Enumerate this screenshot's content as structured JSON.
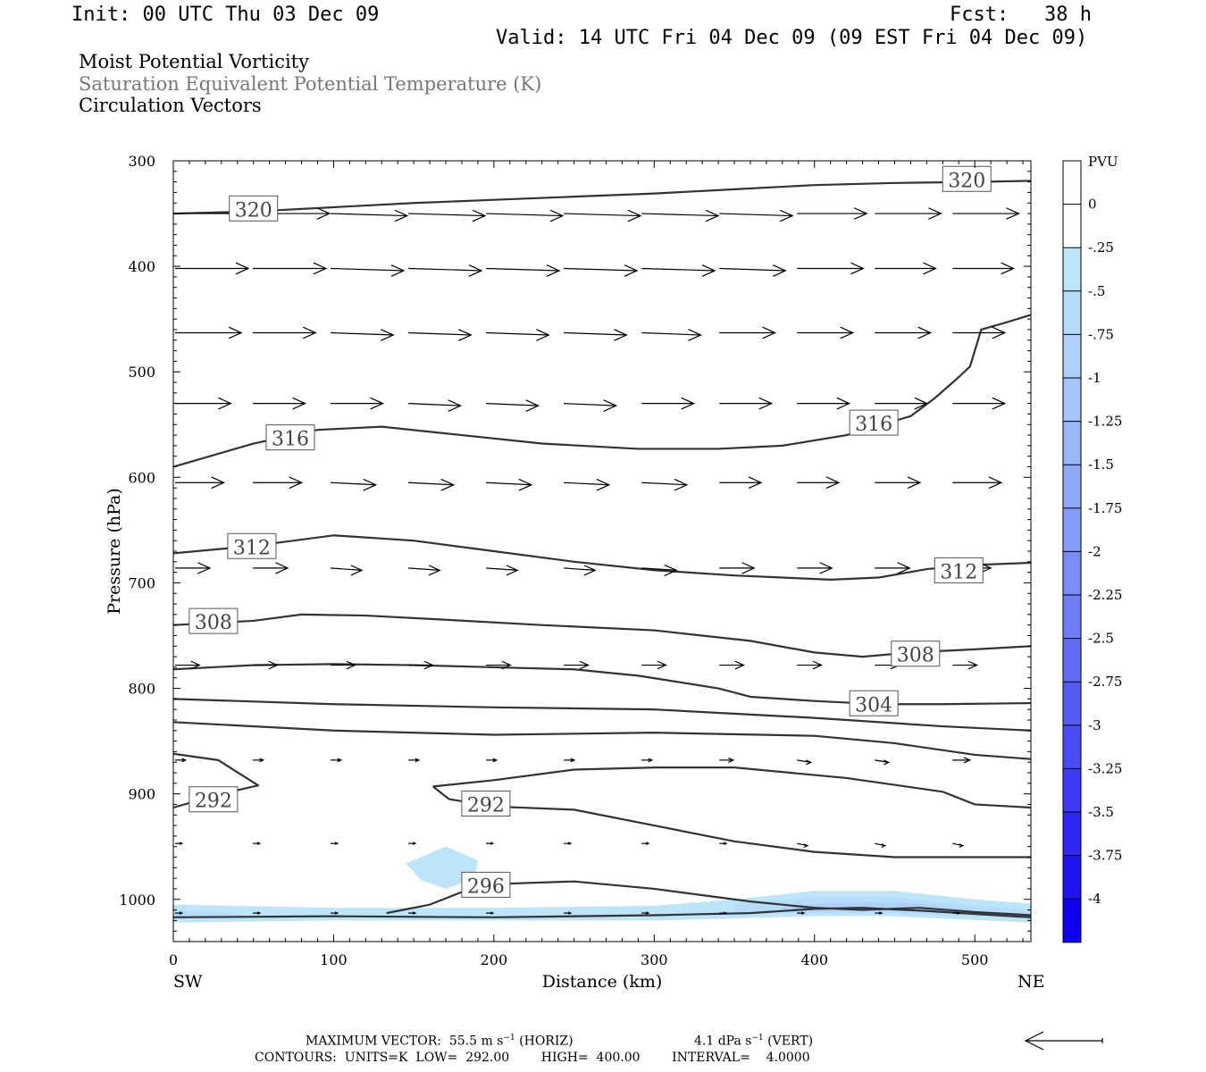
{
  "header": {
    "init": "Init: 00 UTC Thu 03 Dec 09",
    "fcst": "Fcst:   38 h",
    "valid": "Valid: 14 UTC Fri 04 Dec 09 (09 EST Fri 04 Dec 09)"
  },
  "titles": {
    "line1": "Moist Potential Vorticity",
    "line2": "Saturation Equivalent Potential Temperature (K)",
    "line3": "Circulation Vectors"
  },
  "chart_data": {
    "type": "cross-section",
    "xlabel": "Distance (km)",
    "ylabel": "Pressure (hPa)",
    "xlim": [
      0,
      535
    ],
    "ylim": [
      1040,
      300
    ],
    "x_ticks": [
      0,
      100,
      200,
      300,
      400,
      500
    ],
    "y_ticks": [
      300,
      400,
      500,
      600,
      700,
      800,
      900,
      1000
    ],
    "x_end_labels": {
      "left": "SW",
      "right": "NE"
    },
    "colorbar": {
      "title": "PVU",
      "labels": [
        "0",
        "-.25",
        "-.5",
        "-.75",
        "-1",
        "-1.25",
        "-1.5",
        "-1.75",
        "-2",
        "-2.25",
        "-2.5",
        "-2.75",
        "-3",
        "-3.25",
        "-3.5",
        "-3.75",
        "-4"
      ],
      "colors": [
        "#ffffff",
        "#ffffff",
        "#bde5fa",
        "#b5dcfb",
        "#aed1fa",
        "#a4c4fa",
        "#9ab7fa",
        "#8fa9f9",
        "#859bf9",
        "#7a8cf8",
        "#6e7cf8",
        "#626cf7",
        "#565bf7",
        "#4a4bf6",
        "#3d39f6",
        "#2f27f5",
        "#1f13f4",
        "#0f00f2"
      ]
    },
    "contours": [
      {
        "label": "320",
        "points": [
          [
            0,
            350
          ],
          [
            50,
            348
          ],
          [
            100,
            344
          ],
          [
            150,
            340
          ],
          [
            200,
            337
          ],
          [
            250,
            334
          ],
          [
            300,
            331
          ],
          [
            350,
            327
          ],
          [
            400,
            323
          ],
          [
            450,
            321
          ],
          [
            500,
            320
          ],
          [
            535,
            319
          ]
        ]
      },
      {
        "label": "316",
        "points": [
          [
            0,
            590
          ],
          [
            50,
            568
          ],
          [
            90,
            555
          ],
          [
            130,
            552
          ],
          [
            180,
            560
          ],
          [
            230,
            568
          ],
          [
            290,
            573
          ],
          [
            340,
            573
          ],
          [
            380,
            570
          ],
          [
            420,
            560
          ],
          [
            460,
            542
          ],
          [
            475,
            525
          ],
          [
            490,
            505
          ],
          [
            497,
            495
          ],
          [
            504,
            460
          ],
          [
            520,
            453
          ],
          [
            535,
            446
          ]
        ]
      },
      {
        "label": "312",
        "points": [
          [
            0,
            672
          ],
          [
            50,
            665
          ],
          [
            100,
            655
          ],
          [
            150,
            660
          ],
          [
            200,
            670
          ],
          [
            250,
            680
          ],
          [
            300,
            688
          ],
          [
            350,
            693
          ],
          [
            410,
            697
          ],
          [
            440,
            695
          ],
          [
            470,
            687
          ],
          [
            500,
            683
          ],
          [
            535,
            681
          ]
        ]
      },
      {
        "label": "308",
        "points": [
          [
            0,
            740
          ],
          [
            50,
            736
          ],
          [
            80,
            730
          ],
          [
            120,
            731
          ],
          [
            170,
            735
          ],
          [
            230,
            740
          ],
          [
            300,
            745
          ],
          [
            360,
            755
          ],
          [
            400,
            766
          ],
          [
            430,
            770
          ],
          [
            460,
            766
          ],
          [
            500,
            763
          ],
          [
            535,
            760
          ]
        ]
      },
      {
        "label": "304",
        "points": [
          [
            0,
            782
          ],
          [
            50,
            778
          ],
          [
            100,
            777
          ],
          [
            150,
            778
          ],
          [
            200,
            780
          ],
          [
            250,
            782
          ],
          [
            290,
            788
          ],
          [
            340,
            800
          ],
          [
            360,
            808
          ],
          [
            400,
            812
          ],
          [
            440,
            815
          ],
          [
            480,
            815
          ],
          [
            535,
            814
          ]
        ]
      },
      {
        "label": "",
        "points": [
          [
            0,
            810
          ],
          [
            100,
            815
          ],
          [
            200,
            818
          ],
          [
            300,
            820
          ],
          [
            400,
            828
          ],
          [
            480,
            836
          ],
          [
            535,
            840
          ]
        ]
      },
      {
        "label": "",
        "points": [
          [
            0,
            832
          ],
          [
            100,
            840
          ],
          [
            200,
            844
          ],
          [
            300,
            842
          ],
          [
            400,
            845
          ],
          [
            450,
            852
          ],
          [
            500,
            863
          ],
          [
            535,
            867
          ]
        ]
      },
      {
        "label": "",
        "points": [
          [
            0,
            862
          ],
          [
            28,
            868
          ],
          [
            53,
            892
          ],
          [
            30,
            900
          ],
          [
            0,
            913
          ]
        ]
      },
      {
        "label": "292",
        "points": [
          [
            162,
            893
          ],
          [
            200,
            887
          ],
          [
            250,
            877
          ],
          [
            300,
            875
          ],
          [
            350,
            875
          ],
          [
            420,
            885
          ],
          [
            480,
            898
          ],
          [
            500,
            910
          ],
          [
            535,
            913
          ]
        ]
      },
      {
        "label": "",
        "points": [
          [
            162,
            893
          ],
          [
            172,
            905
          ],
          [
            200,
            912
          ],
          [
            250,
            915
          ],
          [
            300,
            930
          ],
          [
            350,
            945
          ],
          [
            400,
            955
          ],
          [
            450,
            960
          ],
          [
            535,
            960
          ]
        ]
      },
      {
        "label": "296",
        "points": [
          [
            133,
            1013
          ],
          [
            160,
            1005
          ],
          [
            180,
            993
          ],
          [
            210,
            985
          ],
          [
            250,
            983
          ],
          [
            300,
            990
          ],
          [
            360,
            1002
          ],
          [
            400,
            1008
          ],
          [
            430,
            1010
          ],
          [
            465,
            1008
          ],
          [
            500,
            1012
          ],
          [
            535,
            1015
          ]
        ]
      },
      {
        "label": "",
        "points": [
          [
            0,
            1017
          ],
          [
            100,
            1016
          ],
          [
            200,
            1017
          ],
          [
            300,
            1015
          ],
          [
            360,
            1013
          ],
          [
            400,
            1009
          ],
          [
            430,
            1008
          ],
          [
            470,
            1011
          ],
          [
            535,
            1017
          ]
        ]
      }
    ],
    "vector_rows": [
      {
        "p": 350,
        "lengths": [
          42,
          44,
          44,
          44,
          44,
          44,
          44,
          42,
          40,
          38,
          38
        ],
        "tilts": [
          0,
          0,
          1,
          1,
          1,
          1,
          1,
          1,
          0,
          0,
          0
        ]
      },
      {
        "p": 402,
        "lengths": [
          42,
          42,
          42,
          42,
          42,
          42,
          42,
          38,
          38,
          35,
          35
        ],
        "tilts": [
          0,
          0,
          1,
          1,
          1,
          1,
          1,
          1,
          0,
          0,
          0
        ]
      },
      {
        "p": 463,
        "lengths": [
          38,
          36,
          36,
          36,
          36,
          36,
          34,
          32,
          32,
          32,
          30
        ],
        "tilts": [
          0,
          0,
          1,
          1,
          1,
          1,
          1,
          0,
          0,
          0,
          0
        ]
      },
      {
        "p": 530,
        "lengths": [
          32,
          30,
          30,
          30,
          30,
          30,
          30,
          30,
          30,
          30,
          30
        ],
        "tilts": [
          0,
          0,
          0,
          1,
          1,
          1,
          0,
          0,
          0,
          0,
          0
        ]
      },
      {
        "p": 605,
        "lengths": [
          28,
          28,
          26,
          26,
          26,
          26,
          26,
          24,
          24,
          26,
          28
        ],
        "tilts": [
          0,
          0,
          1,
          1,
          1,
          1,
          1,
          0,
          0,
          0,
          0
        ]
      },
      {
        "p": 686,
        "lengths": [
          20,
          20,
          18,
          18,
          18,
          18,
          20,
          20,
          20,
          20,
          22
        ],
        "tilts": [
          0,
          0,
          1,
          1,
          1,
          1,
          1,
          0,
          0,
          0,
          0
        ]
      },
      {
        "p": 778,
        "lengths": [
          14,
          14,
          14,
          14,
          14,
          14,
          14,
          14,
          14,
          14,
          14
        ],
        "tilts": [
          0,
          0,
          0,
          0,
          0,
          0,
          0,
          0,
          0,
          0,
          0
        ]
      },
      {
        "p": 868,
        "lengths": [
          6,
          6,
          6,
          6,
          6,
          6,
          6,
          8,
          8,
          8,
          10
        ],
        "tilts": [
          0,
          0,
          0,
          0,
          0,
          0,
          0,
          0,
          1,
          1,
          0
        ]
      },
      {
        "p": 947,
        "lengths": [
          4,
          4,
          4,
          4,
          4,
          4,
          4,
          4,
          6,
          6,
          6
        ],
        "tilts": [
          0,
          0,
          0,
          0,
          0,
          0,
          0,
          0,
          1,
          1,
          1
        ]
      },
      {
        "p": 1013,
        "lengths": [
          4,
          4,
          4,
          4,
          4,
          4,
          4,
          4,
          4,
          4,
          4
        ],
        "tilts": [
          0,
          0,
          0,
          0,
          0,
          0,
          0,
          0,
          0,
          0,
          0
        ]
      }
    ],
    "vector_x": [
      0,
      48.5,
      97,
      145.5,
      194,
      242.5,
      291,
      339.5,
      388,
      436.5,
      485
    ],
    "pv_shading": [
      {
        "value": -0.25,
        "points": [
          [
            0,
            1005
          ],
          [
            100,
            1008
          ],
          [
            200,
            1008
          ],
          [
            300,
            1006
          ],
          [
            350,
            1000
          ],
          [
            400,
            992
          ],
          [
            450,
            992
          ],
          [
            500,
            1000
          ],
          [
            535,
            1004
          ],
          [
            535,
            1022
          ],
          [
            450,
            1016
          ],
          [
            400,
            1016
          ],
          [
            350,
            1018
          ],
          [
            300,
            1020
          ],
          [
            200,
            1020
          ],
          [
            100,
            1020
          ],
          [
            0,
            1022
          ]
        ]
      },
      {
        "value": -0.25,
        "points": [
          [
            145,
            966
          ],
          [
            170,
            950
          ],
          [
            190,
            963
          ],
          [
            188,
            980
          ],
          [
            170,
            990
          ],
          [
            155,
            982
          ]
        ]
      },
      {
        "value": -0.5,
        "points": [
          [
            350,
            1004
          ],
          [
            400,
            998
          ],
          [
            450,
            998
          ],
          [
            500,
            1006
          ],
          [
            535,
            1010
          ],
          [
            535,
            1018
          ],
          [
            450,
            1013
          ],
          [
            400,
            1013
          ],
          [
            350,
            1014
          ]
        ]
      },
      {
        "value": -0.75,
        "points": [
          [
            380,
            1006
          ],
          [
            420,
            1003
          ],
          [
            460,
            1003
          ],
          [
            500,
            1010
          ],
          [
            500,
            1014
          ],
          [
            460,
            1011
          ],
          [
            420,
            1011
          ],
          [
            380,
            1012
          ]
        ]
      },
      {
        "value": -0.5,
        "points": [
          [
            0,
            1010
          ],
          [
            40,
            1013
          ],
          [
            40,
            1017
          ],
          [
            0,
            1018
          ]
        ]
      }
    ]
  },
  "footer": {
    "line1a": "MAXIMUM VECTOR:  55.5 m s",
    "line1a_sup": "−1",
    "line1b": " (HORIZ)",
    "line1c": "4.1 dPa s",
    "line1c_sup": "−1",
    "line1d": " (VERT)",
    "line2": "CONTOURS:  UNITS=K  LOW=  292.00        HIGH=  400.00        INTERVAL=    4.0000"
  },
  "colors": {
    "contour": "#333333",
    "arrow": "#000000"
  }
}
